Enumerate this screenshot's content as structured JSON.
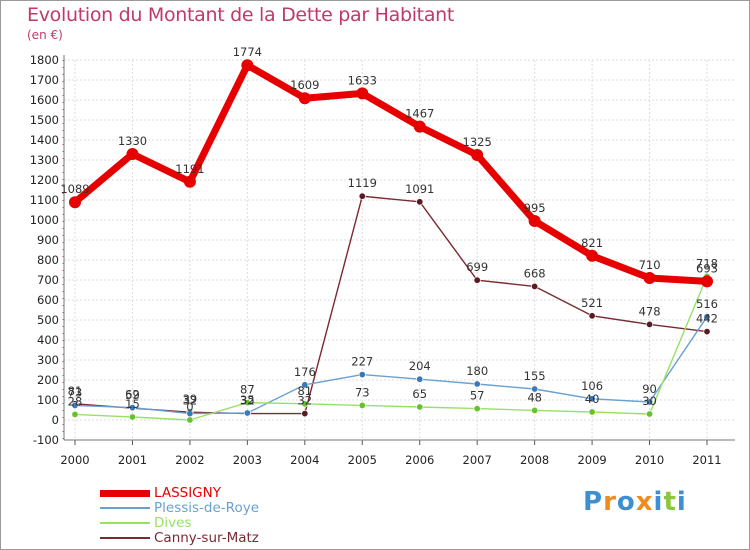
{
  "title": "Evolution du Montant de la Dette par Habitant",
  "subtitle": "(en €)",
  "logo": {
    "letters": [
      "P",
      "r",
      "o",
      "x",
      "i",
      "t",
      "i"
    ],
    "colors": [
      "#3e8fd0",
      "#f08c1e",
      "#3e8fd0",
      "#f08c1e",
      "#3e8fd0",
      "#8cc63f",
      "#3e8fd0"
    ]
  },
  "chart_data": {
    "type": "line",
    "title": "Evolution du Montant de la Dette par Habitant",
    "ylabel": "(en €)",
    "x": [
      "2000",
      "2001",
      "2002",
      "2003",
      "2004",
      "2005",
      "2006",
      "2007",
      "2008",
      "2009",
      "2010",
      "2011"
    ],
    "ylim": [
      -100,
      1800
    ],
    "yticks": [
      -100,
      0,
      100,
      200,
      300,
      400,
      500,
      600,
      700,
      800,
      900,
      1000,
      1100,
      1200,
      1300,
      1400,
      1500,
      1600,
      1700,
      1800
    ],
    "grid": true,
    "legend_position": "bottom-left",
    "series": [
      {
        "name": "LASSIGNY",
        "color": "#e60000",
        "values": [
          1089,
          1330,
          1191,
          1774,
          1609,
          1633,
          1467,
          1325,
          995,
          821,
          710,
          693
        ]
      },
      {
        "name": "Plessis-de-Roye",
        "color": "#6aa0d0",
        "values": [
          73,
          62,
          32,
          35,
          176,
          227,
          204,
          180,
          155,
          106,
          90,
          516
        ]
      },
      {
        "name": "Dives",
        "color": "#99e066",
        "values": [
          28,
          15,
          0,
          87,
          81,
          73,
          65,
          57,
          48,
          40,
          30,
          718
        ]
      },
      {
        "name": "Canny-sur-Matz",
        "color": "#7a2a33",
        "values": [
          81,
          59,
          39,
          32,
          32,
          1119,
          1091,
          699,
          668,
          521,
          478,
          442
        ]
      }
    ]
  }
}
